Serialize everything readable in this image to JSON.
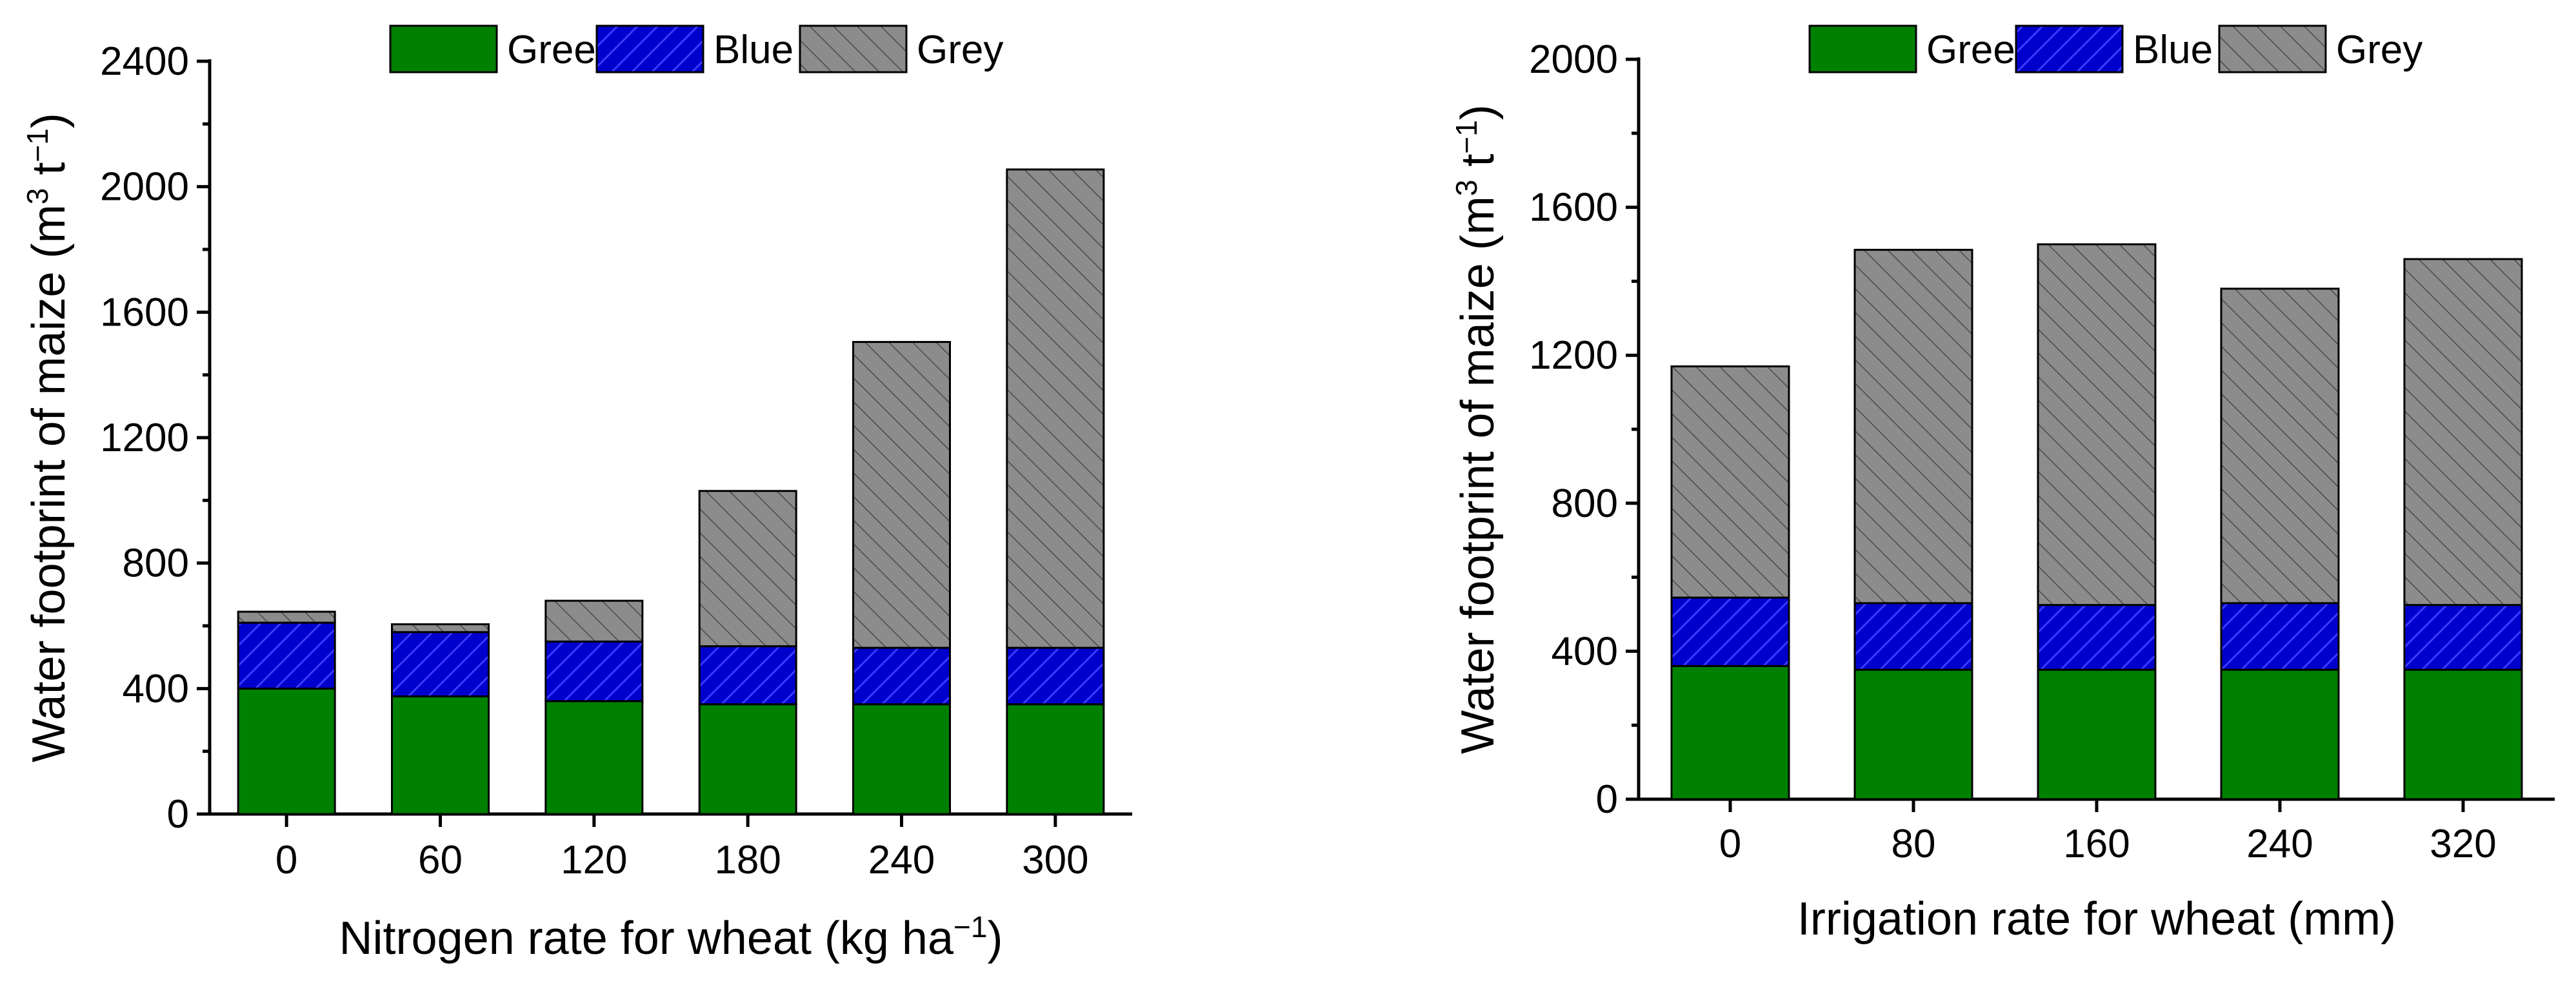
{
  "chart_data": [
    {
      "type": "bar",
      "stacked": true,
      "title": "",
      "xlabel": "Nitrogen rate for wheat (kg ha",
      "xlabel_sup": "−1",
      "xlabel_end": ")",
      "ylabel": "Water footprint of maize (m",
      "ylabel_sup1": "3",
      "ylabel_mid": " t",
      "ylabel_sup2": "−1",
      "ylabel_end": ")",
      "categories": [
        "0",
        "60",
        "120",
        "180",
        "240",
        "300"
      ],
      "ylim": [
        0,
        2400
      ],
      "yticks": [
        0,
        400,
        800,
        1200,
        1600,
        2000,
        2400
      ],
      "legend": [
        "Green",
        "Blue",
        "Grey"
      ],
      "legend_position": "top",
      "series": [
        {
          "name": "Green",
          "values": [
            400,
            375,
            360,
            350,
            350,
            350
          ]
        },
        {
          "name": "Blue",
          "values": [
            210,
            205,
            190,
            185,
            180,
            180
          ]
        },
        {
          "name": "Grey",
          "values": [
            35,
            25,
            130,
            495,
            975,
            1525
          ]
        }
      ]
    },
    {
      "type": "bar",
      "stacked": true,
      "title": "",
      "xlabel": "Irrigation rate for wheat (mm)",
      "xlabel_sup": "",
      "xlabel_end": "",
      "ylabel": "Water footprint of maize (m",
      "ylabel_sup1": "3",
      "ylabel_mid": " t",
      "ylabel_sup2": "−1",
      "ylabel_end": ")",
      "categories": [
        "0",
        "80",
        "160",
        "240",
        "320"
      ],
      "ylim": [
        0,
        2000
      ],
      "yticks": [
        0,
        400,
        800,
        1200,
        1600,
        2000
      ],
      "legend": [
        "Green",
        "Blue",
        "Grey"
      ],
      "legend_position": "top",
      "series": [
        {
          "name": "Green",
          "values": [
            360,
            350,
            350,
            350,
            350
          ]
        },
        {
          "name": "Blue",
          "values": [
            185,
            180,
            175,
            180,
            175
          ]
        },
        {
          "name": "Grey",
          "values": [
            625,
            955,
            975,
            850,
            935
          ]
        }
      ]
    }
  ],
  "colors": {
    "Green": "#008000",
    "Blue": "#0000cc",
    "Grey": "#8c8c8c"
  }
}
